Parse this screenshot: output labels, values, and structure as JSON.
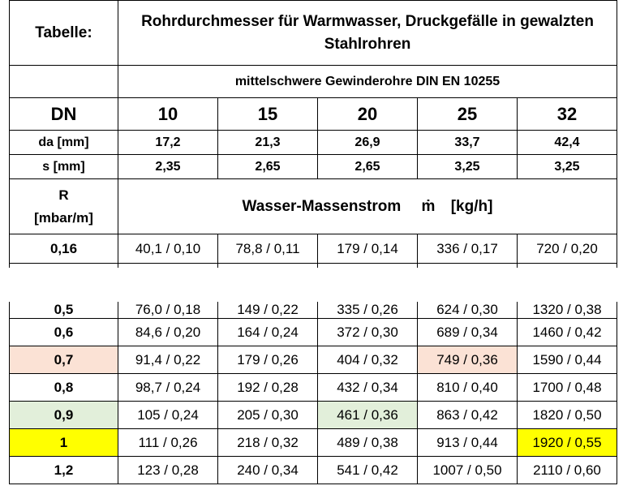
{
  "header": {
    "label": "Tabelle:",
    "title": "Rohrdurchmesser für Warmwasser, Druckgefälle in gewalzten Stahlrohren",
    "subtitle": "mittelschwere Gewinderohre DIN EN 10255"
  },
  "dn_row": {
    "label": "DN",
    "values": [
      "10",
      "15",
      "20",
      "25",
      "32"
    ]
  },
  "da_row": {
    "label": "da  [mm]",
    "values": [
      "17,2",
      "21,3",
      "26,9",
      "33,7",
      "42,4"
    ]
  },
  "s_row": {
    "label": "s  [mm]",
    "values": [
      "2,35",
      "2,65",
      "2,65",
      "3,25",
      "3,25"
    ]
  },
  "r_header": {
    "label_line1": "R",
    "label_line2": "[mbar/m]",
    "flow_label": "Wasser-Massenstrom",
    "flow_symbol": "ṁ",
    "flow_unit": "[kg/h]"
  },
  "row_016": {
    "label": "0,16",
    "values": [
      "40,1 / 0,10",
      "78,8 / 0,11",
      "179 / 0,14",
      "336 / 0,17",
      "720 / 0,20"
    ]
  },
  "row_partial": {
    "label": "0,5",
    "values": [
      "76,0 / 0,18",
      "149 / 0,22",
      "335 / 0,26",
      "624 / 0,30",
      "1320 / 0,38"
    ]
  },
  "rows": [
    {
      "label": "0,6",
      "values": [
        "84,6 / 0,20",
        "164 / 0,24",
        "372 / 0,30",
        "689 / 0,34",
        "1460 / 0,42"
      ],
      "highlight": [
        null,
        null,
        null,
        null,
        null
      ],
      "label_highlight": null
    },
    {
      "label": "0,7",
      "values": [
        "91,4 / 0,22",
        "179 / 0,26",
        "404 / 0,32",
        "749 / 0,36",
        "1590 / 0,44"
      ],
      "highlight": [
        null,
        null,
        null,
        "salmon",
        null
      ],
      "label_highlight": "salmon"
    },
    {
      "label": "0,8",
      "values": [
        "98,7 / 0,24",
        "192 / 0,28",
        "432 / 0,34",
        "810 / 0,40",
        "1700 / 0,48"
      ],
      "highlight": [
        null,
        null,
        null,
        null,
        null
      ],
      "label_highlight": null
    },
    {
      "label": "0,9",
      "values": [
        "105 / 0,24",
        "205 / 0,30",
        "461 / 0,36",
        "863 / 0,42",
        "1820 / 0,50"
      ],
      "highlight": [
        null,
        null,
        "green",
        null,
        null
      ],
      "label_highlight": "green"
    },
    {
      "label": "1",
      "values": [
        "111 / 0,26",
        "218 / 0,32",
        "489 / 0,38",
        "913 / 0,44",
        "1920 / 0,55"
      ],
      "highlight": [
        null,
        null,
        null,
        null,
        "yellow"
      ],
      "label_highlight": "yellow"
    },
    {
      "label": "1,2",
      "values": [
        "123 / 0,28",
        "240 / 0,34",
        "541 / 0,42",
        "1007 / 0,50",
        "2110 / 0,60"
      ],
      "highlight": [
        null,
        null,
        null,
        null,
        null
      ],
      "label_highlight": null
    }
  ],
  "colors": {
    "salmon": "#fbe2d5",
    "green": "#e2efda",
    "yellow": "#ffff00"
  }
}
